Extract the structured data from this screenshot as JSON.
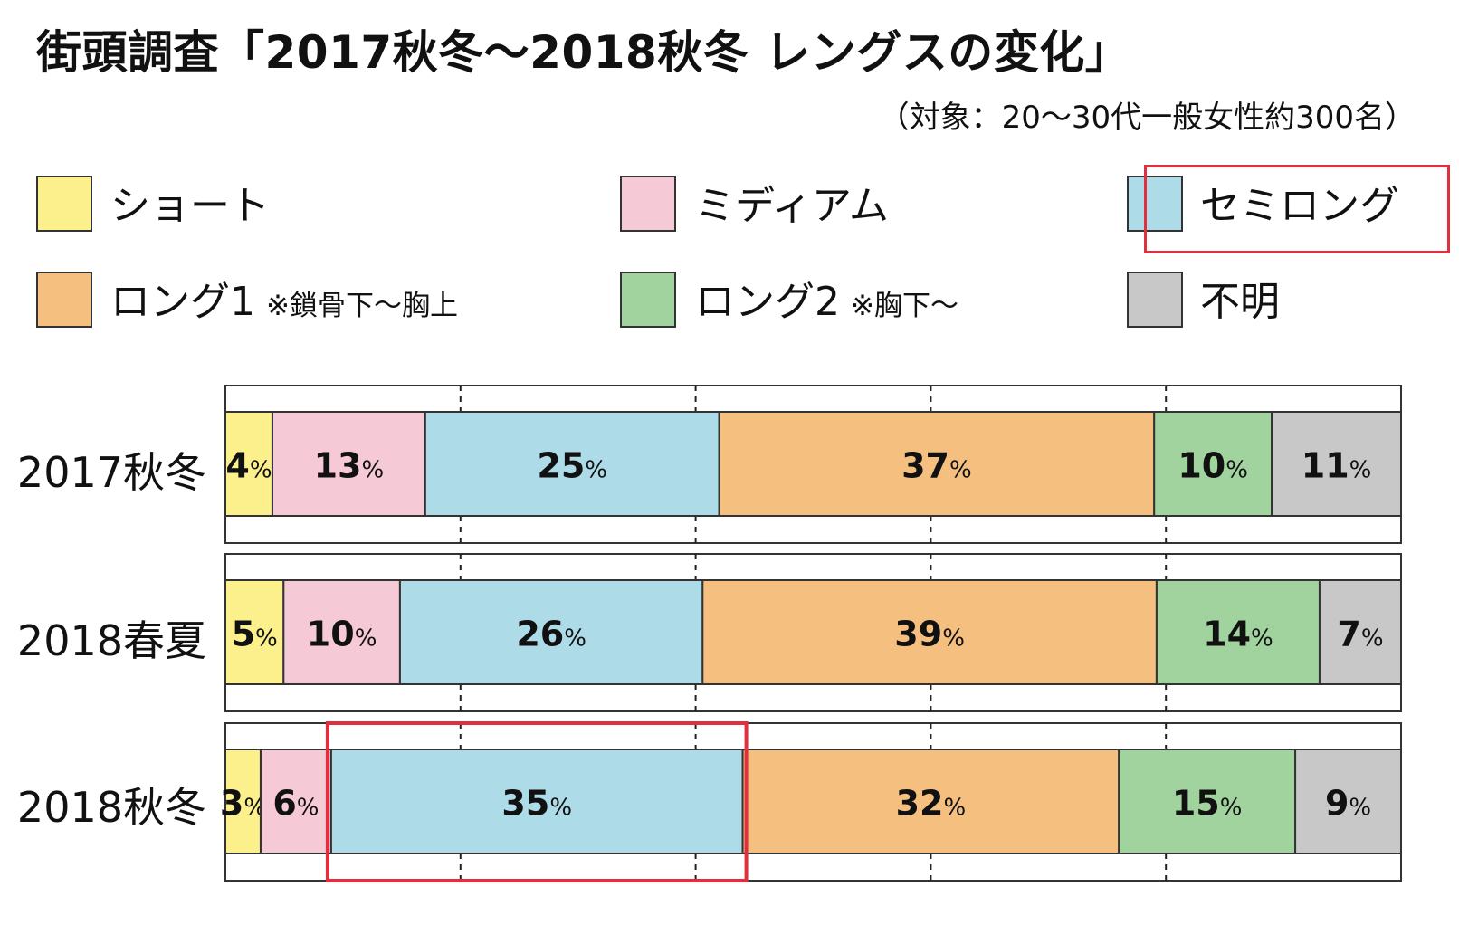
{
  "title": "街頭調査「2017秋冬〜2018秋冬 レングスの変化」",
  "subtitle": "（対象：20〜30代一般女性約300名）",
  "percent_sign": "%",
  "legend": [
    {
      "label": "ショート",
      "note": "",
      "color": "#fbf08b"
    },
    {
      "label": "ミディアム",
      "note": "",
      "color": "#f6c9d7"
    },
    {
      "label": "セミロング",
      "note": "",
      "color": "#addbe8"
    },
    {
      "label": "ロング1",
      "note": "※鎖骨下〜胸上",
      "color": "#f5c07f"
    },
    {
      "label": "ロング2",
      "note": "※胸下〜",
      "color": "#a1d39e"
    },
    {
      "label": "不明",
      "note": "",
      "color": "#c8c8c8"
    }
  ],
  "highlight_color": "#e0303e",
  "chart_data": {
    "type": "bar",
    "orientation": "horizontal",
    "stacked": true,
    "normalized": true,
    "categories": [
      "2017秋冬",
      "2018春夏",
      "2018秋冬"
    ],
    "series": [
      {
        "name": "ショート",
        "values": [
          4,
          5,
          3
        ]
      },
      {
        "name": "ミディアム",
        "values": [
          13,
          10,
          6
        ]
      },
      {
        "name": "セミロング",
        "values": [
          25,
          26,
          35
        ]
      },
      {
        "name": "ロング1",
        "values": [
          37,
          39,
          32
        ]
      },
      {
        "name": "ロング2",
        "values": [
          10,
          14,
          15
        ]
      },
      {
        "name": "不明",
        "values": [
          11,
          7,
          9
        ]
      }
    ],
    "xlim": [
      0,
      100
    ],
    "grid": "dashed vertical at 20, 40, 60, 80",
    "highlighted": {
      "series": "セミロング",
      "category": "2018秋冬"
    }
  }
}
